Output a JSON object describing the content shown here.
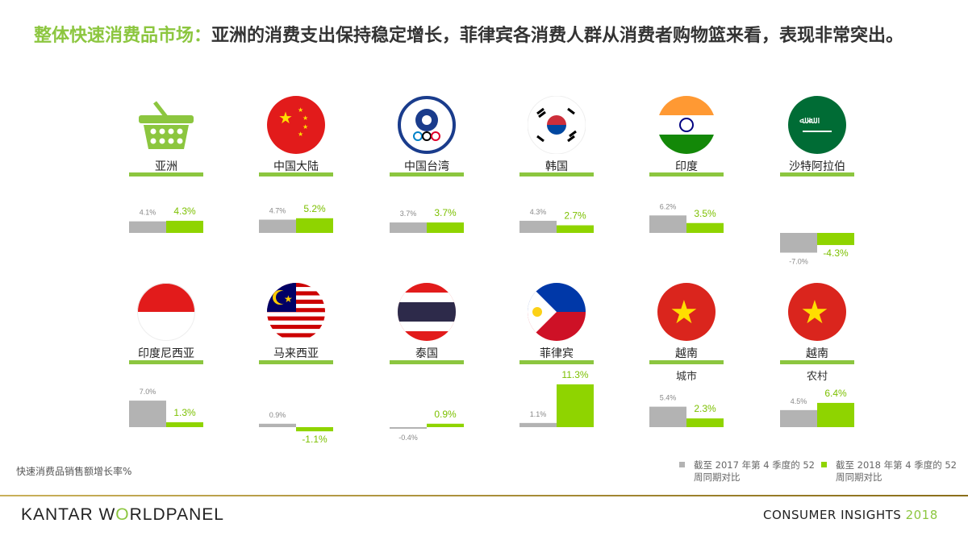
{
  "title": {
    "highlight": "整体快速消费品市场：",
    "rest": "亚洲的消费支出保持稳定增长，菲律宾各消费人群从消费者购物篮来看，表现非常突出。"
  },
  "colors": {
    "accent": "#8cc63f",
    "bar_2017": "#b3b3b3",
    "bar_2018": "#8fd400"
  },
  "chart_data": {
    "type": "bar",
    "ylabel": "快速消费品销售额增长率%",
    "legend": [
      "截至 2017 年第 4 季度的 52周同期对比",
      "截至 2018 年第 4 季度的 52周同期对比"
    ],
    "legend_placement": "bottom-right",
    "panels": [
      {
        "label": "亚洲",
        "icon": "shopping-basket-icon",
        "v2017": 4.1,
        "v2018": 4.3,
        "t2017": "4.1%",
        "t2018": "4.3%"
      },
      {
        "label": "中国大陆",
        "icon": "china-flag-icon",
        "v2017": 4.7,
        "v2018": 5.2,
        "t2017": "4.7%",
        "t2018": "5.2%"
      },
      {
        "label": "中国台湾",
        "icon": "taiwan-emblem-icon",
        "v2017": 3.7,
        "v2018": 3.7,
        "t2017": "3.7%",
        "t2018": "3.7%"
      },
      {
        "label": "韩国",
        "icon": "korea-flag-icon",
        "v2017": 4.3,
        "v2018": 2.7,
        "t2017": "4.3%",
        "t2018": "2.7%"
      },
      {
        "label": "印度",
        "icon": "india-flag-icon",
        "v2017": 6.2,
        "v2018": 3.5,
        "t2017": "6.2%",
        "t2018": "3.5%"
      },
      {
        "label": "沙特阿拉伯",
        "icon": "saudi-flag-icon",
        "v2017": -7.0,
        "v2018": -4.3,
        "t2017": "-7.0%",
        "t2018": "-4.3%"
      },
      {
        "label": "印度尼西亚",
        "icon": "indonesia-flag-icon",
        "v2017": 7.0,
        "v2018": 1.3,
        "t2017": "7.0%",
        "t2018": "1.3%"
      },
      {
        "label": "马来西亚",
        "icon": "malaysia-flag-icon",
        "v2017": 0.9,
        "v2018": -1.1,
        "t2017": "0.9%",
        "t2018": "-1.1%"
      },
      {
        "label": "泰国",
        "icon": "thailand-flag-icon",
        "v2017": -0.4,
        "v2018": 0.9,
        "t2017": "-0.4%",
        "t2018": "0.9%"
      },
      {
        "label": "菲律宾",
        "icon": "philippines-flag-icon",
        "v2017": 1.1,
        "v2018": 11.3,
        "t2017": "1.1%",
        "t2018": "11.3%"
      },
      {
        "label": "越南",
        "sub": "城市",
        "icon": "vietnam-flag-icon",
        "v2017": 5.4,
        "v2018": 2.3,
        "t2017": "5.4%",
        "t2018": "2.3%"
      },
      {
        "label": "越南",
        "sub": "农村",
        "icon": "vietnam-flag-icon",
        "v2017": 4.5,
        "v2018": 6.4,
        "t2017": "4.5%",
        "t2018": "6.4%"
      }
    ]
  },
  "footer": {
    "logo_a": "KANTAR W",
    "logo_o": "O",
    "logo_b": "RLDPANEL",
    "ci": "CONSUMER INSIGHTS ",
    "year": "2018"
  }
}
